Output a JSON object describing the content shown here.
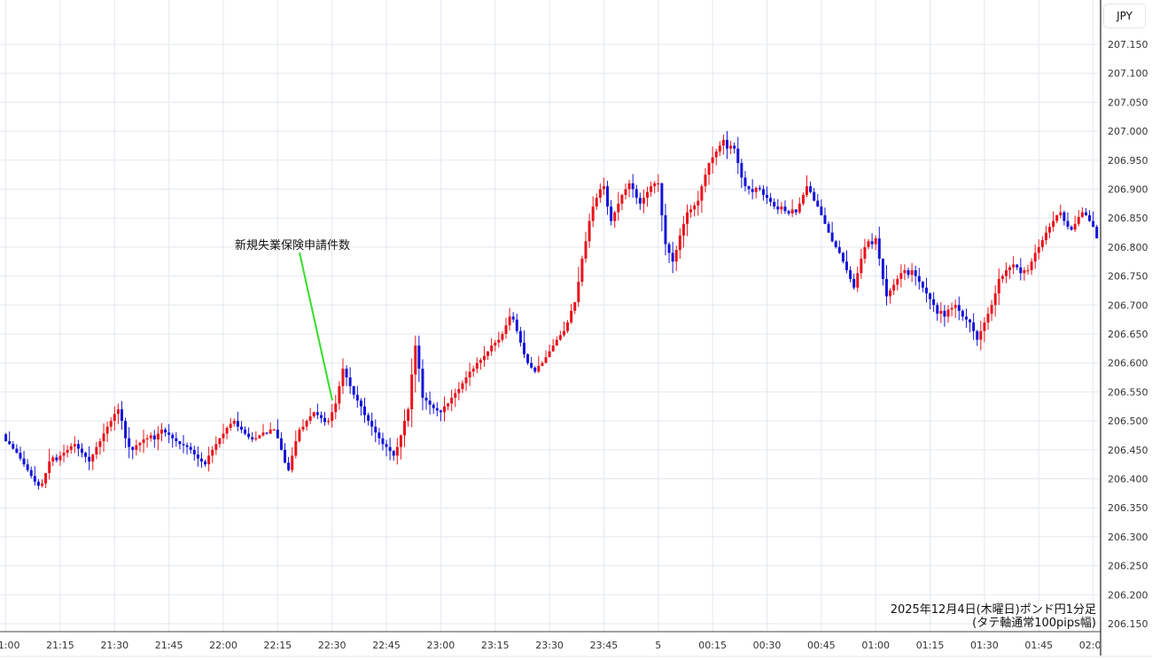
{
  "chart_data": {
    "type": "candlestick",
    "interval": "1 minute",
    "currency_label": "JPY",
    "caption_line1": "2025年12月4日(木曜日)ポンド円1分足",
    "caption_line2": "(タテ軸通常100pips幅)",
    "annotation": {
      "text": "新規失業保険申請件数",
      "time": "22:30",
      "color": "#33e02a"
    },
    "colors": {
      "up": "#e8141c",
      "down": "#1414d8",
      "grid": "#e3e8ee"
    },
    "ylim": [
      206.15,
      207.15
    ],
    "y_ticks": [
      "207.150",
      "207.100",
      "207.050",
      "207.000",
      "206.950",
      "206.900",
      "206.850",
      "206.800",
      "206.750",
      "206.700",
      "206.650",
      "206.600",
      "206.550",
      "206.500",
      "206.450",
      "206.400",
      "206.350",
      "206.300",
      "206.250",
      "206.200",
      "206.150"
    ],
    "x_ticks": [
      "21:00",
      "21:15",
      "21:30",
      "21:45",
      "22:00",
      "22:15",
      "22:30",
      "22:45",
      "23:00",
      "23:15",
      "23:30",
      "23:45",
      "5",
      "00:15",
      "00:30",
      "00:45",
      "01:00",
      "01:15",
      "01:30",
      "01:45",
      "02:00"
    ],
    "first_candle_time": "20:59",
    "close": [
      206.477,
      206.465,
      206.46,
      206.452,
      206.445,
      206.435,
      206.425,
      206.415,
      206.405,
      206.395,
      206.388,
      206.392,
      206.41,
      206.43,
      206.437,
      206.432,
      206.44,
      206.445,
      206.45,
      206.456,
      206.46,
      206.452,
      206.445,
      206.438,
      206.43,
      206.442,
      206.455,
      206.465,
      206.478,
      206.49,
      206.5,
      206.512,
      206.52,
      206.5,
      206.47,
      206.455,
      206.45,
      206.458,
      206.462,
      206.468,
      206.47,
      206.475,
      206.468,
      206.478,
      206.485,
      206.48,
      206.476,
      206.47,
      206.465,
      206.46,
      206.458,
      206.455,
      206.45,
      206.442,
      206.435,
      206.43,
      206.425,
      206.44,
      206.45,
      206.46,
      206.47,
      206.478,
      206.488,
      206.495,
      206.5,
      206.49,
      206.485,
      206.478,
      206.472,
      206.468,
      206.47,
      206.475,
      206.48,
      206.478,
      206.485,
      206.485,
      206.47,
      206.45,
      206.428,
      206.415,
      206.44,
      206.465,
      206.485,
      206.49,
      206.5,
      206.508,
      206.515,
      206.51,
      206.505,
      206.498,
      206.5,
      206.515,
      206.53,
      206.56,
      206.59,
      206.575,
      206.56,
      206.545,
      206.535,
      206.525,
      206.51,
      206.5,
      206.49,
      206.48,
      206.47,
      206.46,
      206.455,
      206.448,
      206.44,
      206.455,
      206.475,
      206.5,
      206.52,
      206.58,
      206.63,
      206.59,
      206.54,
      206.535,
      206.528,
      206.522,
      206.518,
      206.515,
      206.525,
      206.53,
      206.54,
      206.548,
      206.555,
      206.565,
      206.575,
      206.585,
      206.59,
      206.6,
      206.605,
      206.612,
      206.62,
      206.63,
      206.635,
      206.64,
      206.65,
      206.665,
      206.68,
      206.675,
      206.655,
      206.635,
      206.615,
      206.6,
      206.592,
      206.585,
      206.595,
      206.6,
      206.61,
      206.62,
      206.63,
      206.64,
      206.648,
      206.655,
      206.67,
      206.69,
      206.705,
      206.74,
      206.78,
      206.81,
      206.845,
      206.87,
      206.885,
      206.9,
      206.905,
      206.87,
      206.845,
      206.86,
      206.875,
      206.89,
      206.9,
      206.91,
      206.9,
      206.885,
      206.875,
      206.885,
      206.895,
      206.905,
      206.91,
      206.91,
      206.855,
      206.805,
      206.79,
      206.775,
      206.795,
      206.82,
      206.84,
      206.86,
      206.865,
      206.872,
      206.88,
      206.905,
      206.925,
      206.945,
      206.955,
      206.965,
      206.975,
      206.985,
      206.97,
      206.975,
      206.97,
      206.945,
      206.92,
      206.905,
      206.9,
      206.895,
      206.902,
      206.9,
      206.89,
      206.885,
      206.878,
      206.87,
      206.865,
      206.87,
      206.862,
      206.858,
      206.865,
      206.86,
      206.875,
      206.89,
      206.905,
      206.895,
      206.88,
      206.87,
      206.855,
      206.84,
      206.825,
      206.81,
      206.8,
      206.79,
      206.775,
      206.76,
      206.745,
      206.73,
      206.755,
      206.78,
      206.8,
      206.81,
      206.805,
      206.815,
      206.78,
      206.745,
      206.715,
      206.725,
      206.735,
      206.745,
      206.755,
      206.76,
      206.752,
      206.76,
      206.75,
      206.74,
      206.73,
      206.72,
      206.71,
      206.7,
      206.685,
      206.69,
      206.68,
      206.692,
      206.695,
      206.7,
      206.69,
      206.68,
      206.675,
      206.67,
      206.655,
      206.64,
      206.655,
      206.67,
      206.685,
      206.7,
      206.72,
      206.745,
      206.75,
      206.76,
      206.765,
      206.77,
      206.765,
      206.755,
      206.76,
      206.76,
      206.775,
      206.79,
      206.8,
      206.812,
      206.825,
      206.835,
      206.845,
      206.855,
      206.86,
      206.845,
      206.835,
      206.83,
      206.84,
      206.852,
      206.86,
      206.855,
      206.845,
      206.835,
      206.815
    ]
  }
}
